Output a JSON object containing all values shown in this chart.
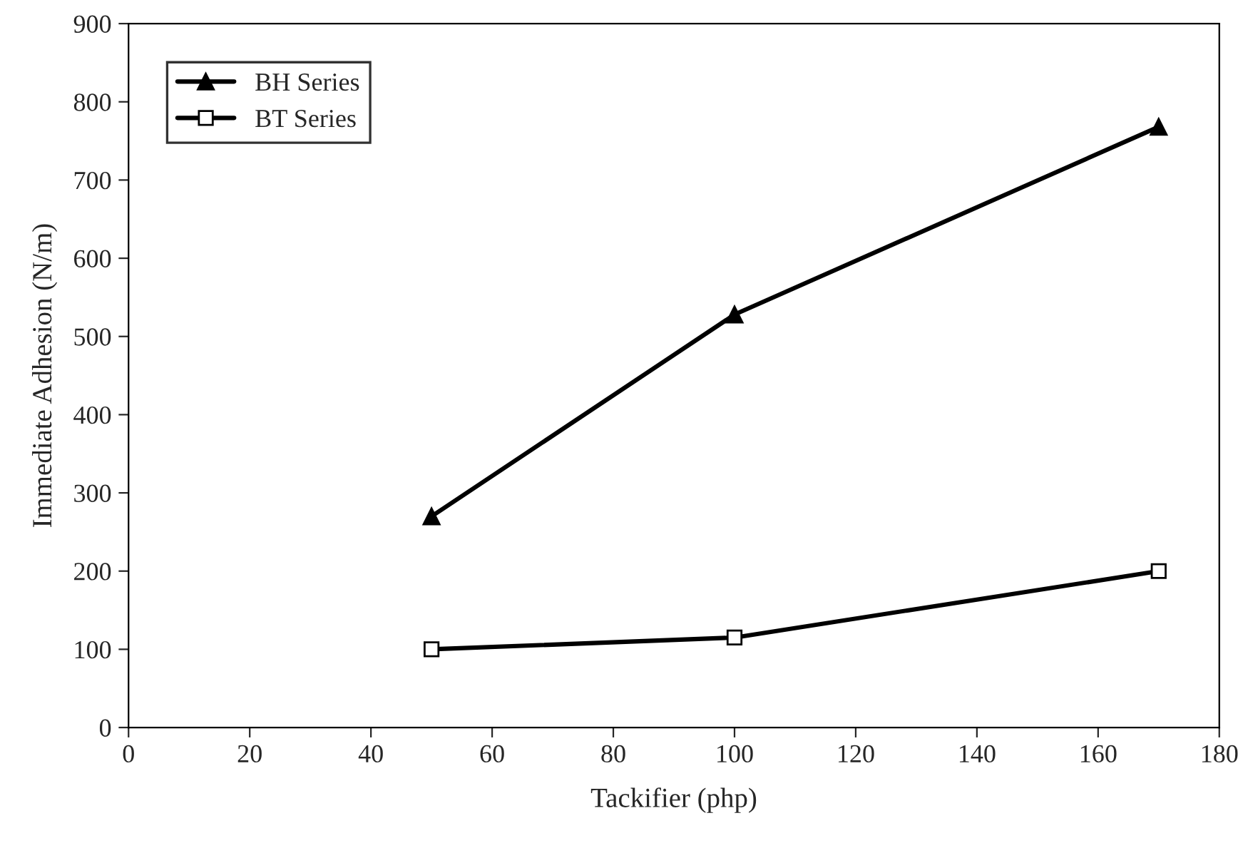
{
  "chart_data": {
    "type": "line",
    "xlabel": "Tackifier (php)",
    "ylabel": "Immediate Adhesion (N/m)",
    "x": [
      50,
      100,
      170
    ],
    "series": [
      {
        "name": "BH Series",
        "color": "#000000",
        "marker": "triangle",
        "values": [
          270,
          528,
          768
        ]
      },
      {
        "name": "BT Series",
        "color": "#000000",
        "marker": "square",
        "values": [
          100,
          115,
          200
        ]
      }
    ],
    "xlim": [
      0,
      180
    ],
    "xticks": [
      0,
      20,
      40,
      60,
      80,
      100,
      120,
      140,
      160,
      180
    ],
    "ylim": [
      0,
      900
    ],
    "yticks": [
      0,
      100,
      200,
      300,
      400,
      500,
      600,
      700,
      800,
      900
    ],
    "grid": false,
    "legend": "top left",
    "line_style": "solid"
  }
}
